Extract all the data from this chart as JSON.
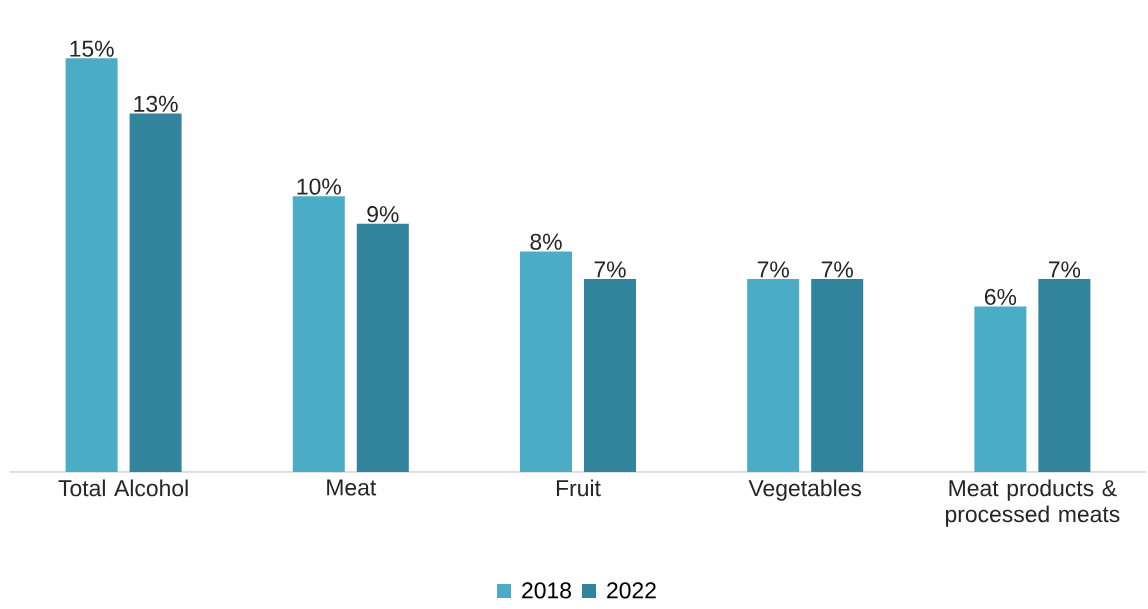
{
  "chart_data": {
    "type": "bar",
    "categories": [
      "Total Alcohol",
      "Meat",
      "Fruit",
      "Vegetables",
      "Meat products & processed meats"
    ],
    "series": [
      {
        "name": "2018",
        "color": "#4bacc6",
        "values": [
          15,
          10,
          8,
          7,
          6
        ],
        "value_labels": [
          "15%",
          "10%",
          "8%",
          "7%",
          "6%"
        ]
      },
      {
        "name": "2022",
        "color": "#31849b",
        "values": [
          13,
          9,
          7,
          7,
          7
        ],
        "value_labels": [
          "13%",
          "9%",
          "7%",
          "7%",
          "7%"
        ]
      }
    ],
    "legend": "bottom"
  }
}
